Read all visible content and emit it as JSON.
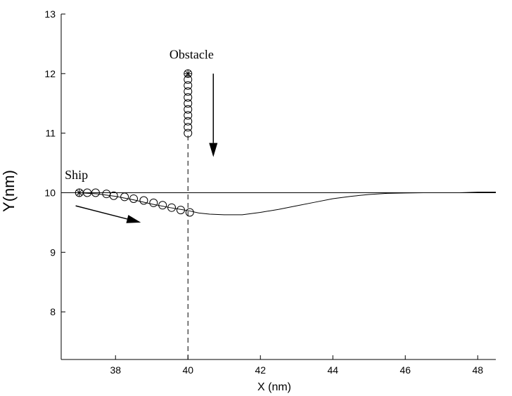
{
  "chart_data": {
    "type": "line",
    "xlabel": "X (nm)",
    "ylabel": "Y(nm)",
    "xlim": [
      36.5,
      48.5
    ],
    "ylim": [
      7.2,
      13
    ],
    "xticks": [
      38,
      40,
      42,
      44,
      46,
      48
    ],
    "yticks": [
      8,
      9,
      10,
      11,
      12,
      13
    ],
    "grid": false,
    "series": [
      {
        "role": "reference-line",
        "x": [
          36.5,
          48.5
        ],
        "y": [
          10,
          10
        ]
      },
      {
        "role": "ship-trajectory",
        "x": [
          37.0,
          37.5,
          38.0,
          38.5,
          39.0,
          39.5,
          40.0,
          40.3,
          40.6,
          41.0,
          41.5,
          42.0,
          42.5,
          43.0,
          43.5,
          44.0,
          44.5,
          45.0,
          45.5,
          46.0,
          46.5,
          47.0,
          47.5,
          48.0,
          48.5
        ],
        "y": [
          10.0,
          9.98,
          9.94,
          9.88,
          9.81,
          9.75,
          9.7,
          9.66,
          9.64,
          9.63,
          9.63,
          9.67,
          9.72,
          9.78,
          9.84,
          9.9,
          9.94,
          9.97,
          9.99,
          9.995,
          10.0,
          10.0,
          10.0,
          10.01,
          10.01
        ]
      },
      {
        "role": "ship-markers",
        "x": [
          37.0,
          37.22,
          37.45,
          37.75,
          37.95,
          38.25,
          38.5,
          38.78,
          39.05,
          39.3,
          39.55,
          39.8,
          40.05
        ],
        "y": [
          10.0,
          10.0,
          10.0,
          9.98,
          9.95,
          9.93,
          9.9,
          9.87,
          9.83,
          9.79,
          9.75,
          9.71,
          9.67
        ]
      },
      {
        "role": "obstacle-markers",
        "x": [
          40,
          40,
          40,
          40,
          40,
          40,
          40,
          40,
          40,
          40,
          40
        ],
        "y": [
          11.0,
          11.1,
          11.2,
          11.3,
          11.4,
          11.5,
          11.6,
          11.7,
          11.8,
          11.9,
          12.0
        ]
      },
      {
        "role": "vertical-dashed-line",
        "x": [
          40,
          40
        ],
        "y": [
          7.2,
          11.0
        ]
      }
    ],
    "annotations": [
      {
        "text": "Ship",
        "x": 36.6,
        "y": 10.23
      },
      {
        "text": "Obstacle",
        "x": 40.1,
        "y": 12.25
      }
    ],
    "arrows": [
      {
        "from": [
          36.9,
          9.78
        ],
        "to": [
          38.7,
          9.5
        ]
      },
      {
        "from": [
          40.7,
          12.0
        ],
        "to": [
          40.7,
          10.6
        ]
      }
    ]
  }
}
